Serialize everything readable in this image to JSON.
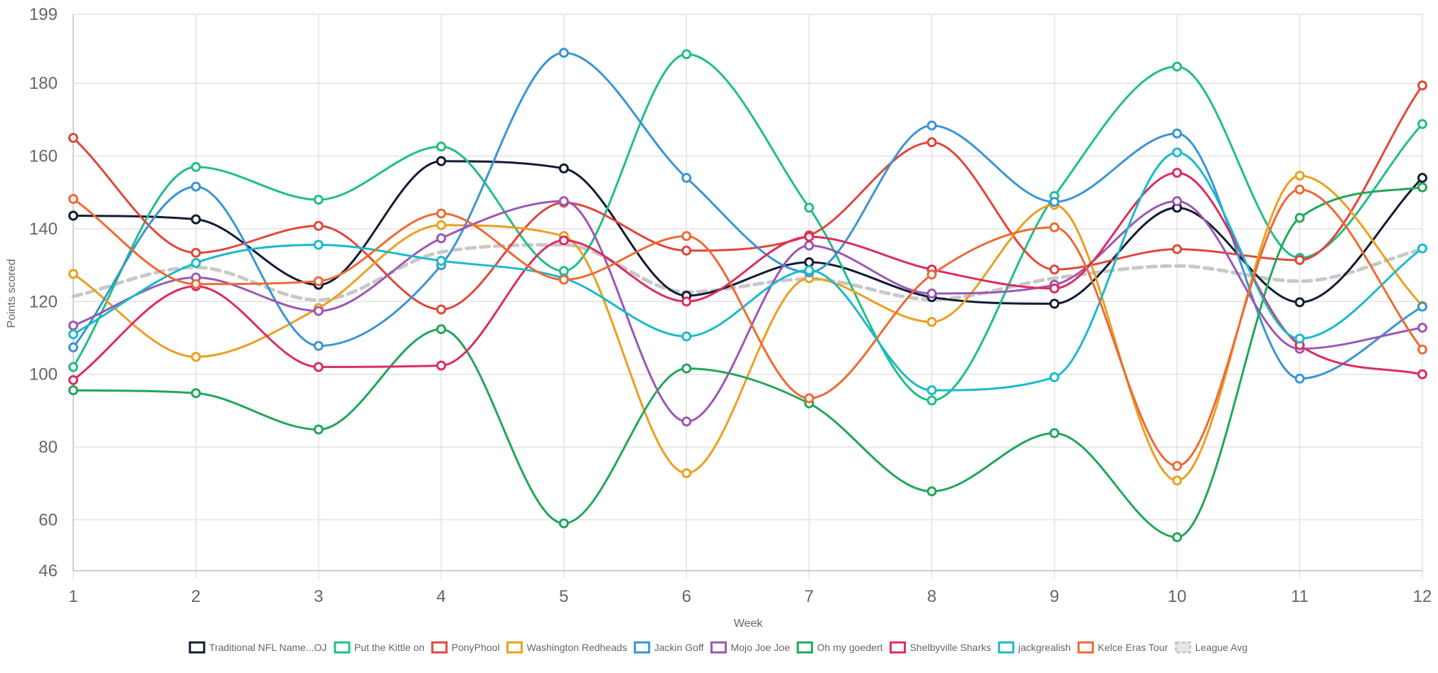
{
  "chart_data": {
    "type": "line",
    "title": "",
    "xlabel": "Week",
    "ylabel": "Points scored",
    "x": [
      1,
      2,
      3,
      4,
      5,
      6,
      7,
      8,
      9,
      10,
      11,
      12
    ],
    "x_tick_labels": [
      "1",
      "2",
      "3",
      "4",
      "5",
      "6",
      "7",
      "8",
      "9",
      "10",
      "11",
      "12"
    ],
    "ylim": [
      46,
      199
    ],
    "y_ticks": [
      46,
      60,
      80,
      100,
      120,
      140,
      160,
      180,
      199
    ],
    "y_tick_labels": [
      "46",
      "60",
      "80",
      "100",
      "120",
      "140",
      "160",
      "180",
      "199"
    ],
    "grid": true,
    "legend_position": "bottom-center",
    "series": [
      {
        "name": "Traditional NFL Name...OJ",
        "color": "#111b33",
        "dashed": false,
        "points": true,
        "values": [
          143.6,
          142.6,
          124.6,
          158.6,
          156.6,
          121.6,
          130.8,
          121.2,
          119.4,
          145.8,
          119.8,
          154.0
        ]
      },
      {
        "name": "Put the Kittle on",
        "color": "#20bf86",
        "dashed": false,
        "points": true,
        "values": [
          102.0,
          157.0,
          148.0,
          162.6,
          128.4,
          188.0,
          145.8,
          92.8,
          149.0,
          184.6,
          132.0,
          168.8
        ]
      },
      {
        "name": "PonyPhool",
        "color": "#e0473a",
        "dashed": false,
        "points": true,
        "values": [
          165.0,
          133.4,
          140.8,
          117.8,
          147.2,
          134.0,
          138.2,
          163.8,
          128.8,
          134.4,
          131.4,
          179.4
        ]
      },
      {
        "name": "Washington Redheads",
        "color": "#ec9f20",
        "dashed": false,
        "points": true,
        "values": [
          127.6,
          104.8,
          118.2,
          141.0,
          138.0,
          72.8,
          126.4,
          114.4,
          146.6,
          70.8,
          154.6,
          118.8
        ]
      },
      {
        "name": "Jackin Goff",
        "color": "#3a95d3",
        "dashed": false,
        "points": true,
        "values": [
          107.4,
          151.6,
          107.8,
          130.0,
          188.4,
          154.0,
          128.0,
          168.4,
          147.4,
          166.2,
          98.8,
          118.6
        ]
      },
      {
        "name": "Mojo Joe Joe",
        "color": "#9c57b6",
        "dashed": false,
        "points": true,
        "values": [
          113.4,
          126.6,
          117.4,
          137.4,
          147.6,
          87.0,
          135.4,
          122.2,
          124.6,
          147.6,
          107.0,
          112.8
        ]
      },
      {
        "name": "Oh my goedert",
        "color": "#22a65a",
        "dashed": false,
        "points": true,
        "values": [
          95.6,
          94.8,
          84.8,
          112.4,
          59.0,
          101.6,
          92.0,
          67.8,
          83.8,
          55.2,
          143.0,
          151.4
        ]
      },
      {
        "name": "Shelbyville Sharks",
        "color": "#dc2c5f",
        "dashed": false,
        "points": true,
        "values": [
          98.4,
          124.2,
          102.0,
          102.4,
          136.8,
          120.0,
          137.8,
          128.8,
          123.6,
          155.4,
          108.0,
          100.0
        ]
      },
      {
        "name": "jackgrealish",
        "color": "#1bbacc",
        "dashed": false,
        "points": true,
        "values": [
          111.0,
          130.6,
          135.6,
          131.2,
          126.4,
          110.4,
          128.6,
          95.6,
          99.2,
          161.0,
          109.8,
          134.6
        ]
      },
      {
        "name": "Kelce Eras Tour",
        "color": "#ee6a33",
        "dashed": false,
        "points": true,
        "values": [
          148.2,
          124.8,
          125.6,
          144.2,
          126.0,
          138.0,
          93.4,
          127.4,
          140.4,
          74.8,
          150.8,
          106.8
        ]
      },
      {
        "name": "League Avg",
        "color": "#c8c8c8",
        "dashed": true,
        "points": false,
        "values": [
          121.4,
          129.4,
          120.4,
          133.6,
          135.6,
          122.6,
          126.2,
          120.6,
          126.4,
          129.8,
          125.6,
          134.4
        ]
      }
    ]
  }
}
